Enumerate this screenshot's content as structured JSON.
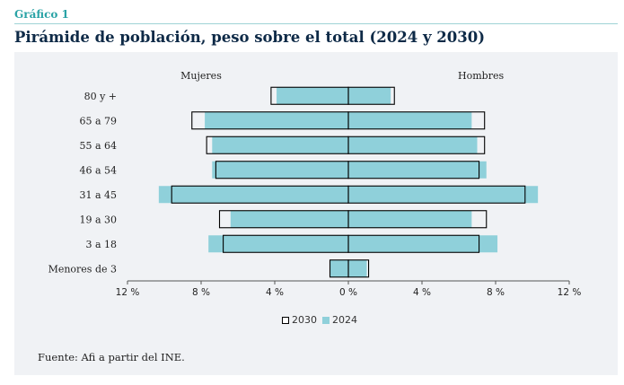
{
  "header": {
    "kicker": "Gráfico 1",
    "title": "Pirámide de población, peso sobre el total (2024 y 2030)"
  },
  "source": "Fuente: Afi a partir del INE.",
  "colors": {
    "bar_2024": "#8fd0da",
    "outline_2030": "#000000",
    "panel": "#f0f2f5",
    "title": "#0e2a47",
    "accent": "#2aa3a6"
  },
  "chart_data": {
    "type": "bar",
    "orientation": "horizontal",
    "layout": "population-pyramid",
    "side_labels": {
      "left": "Mujeres",
      "right": "Hombres"
    },
    "categories": [
      "80 y +",
      "65 a 79",
      "55 a 64",
      "46 a 54",
      "31 a 45",
      "19 a 30",
      "3 a 18",
      "Menores de 3"
    ],
    "xlim": [
      -12,
      12
    ],
    "x_ticks": [
      -12,
      -8,
      -4,
      0,
      4,
      8,
      12
    ],
    "x_tick_labels": [
      "12 %",
      "8 %",
      "4 %",
      "0 %",
      "4 %",
      "8 %",
      "12 %"
    ],
    "series": [
      {
        "name": "2024",
        "style": "filled",
        "mujeres": [
          3.9,
          7.8,
          7.4,
          7.4,
          10.3,
          6.4,
          7.6,
          1.0
        ],
        "hombres": [
          2.3,
          6.7,
          7.0,
          7.5,
          10.3,
          6.7,
          8.1,
          1.0
        ]
      },
      {
        "name": "2030",
        "style": "outline",
        "mujeres": [
          4.2,
          8.5,
          7.7,
          7.2,
          9.6,
          7.0,
          6.8,
          1.0
        ],
        "hombres": [
          2.5,
          7.4,
          7.4,
          7.1,
          9.6,
          7.5,
          7.1,
          1.1
        ]
      }
    ],
    "legend": {
      "placement": "bottom-center",
      "entries": [
        "2030",
        "2024"
      ]
    }
  }
}
